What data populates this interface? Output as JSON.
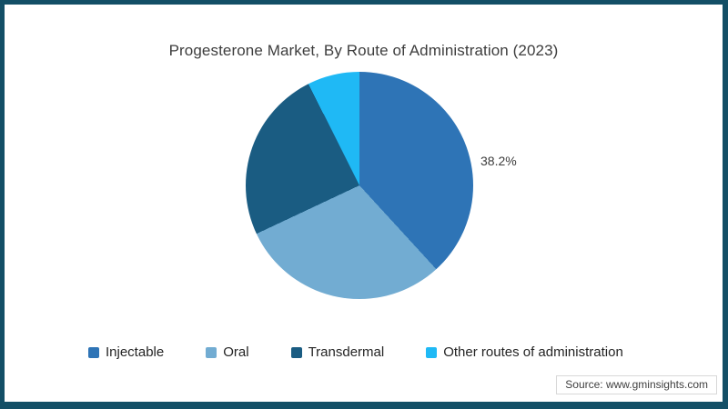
{
  "frame": {
    "border_color": "#134f66",
    "background": "#ffffff"
  },
  "chart_data": {
    "type": "pie",
    "title": "Progesterone Market, By Route of Administration (2023)",
    "unit": "%",
    "start_angle_deg": 0,
    "direction": "clockwise",
    "legend_position": "bottom",
    "visible_data_label": "38.2%",
    "series": [
      {
        "name": "Injectable",
        "value": 38.2,
        "color": "#2e74b6"
      },
      {
        "name": "Oral",
        "value": 29.8,
        "color": "#72acd2"
      },
      {
        "name": "Transdermal",
        "value": 24.6,
        "color": "#1a5c82"
      },
      {
        "name": "Other routes of administration",
        "value": 7.4,
        "color": "#1fb9f5"
      }
    ]
  },
  "source": {
    "text": "Source: www.gminsights.com"
  }
}
